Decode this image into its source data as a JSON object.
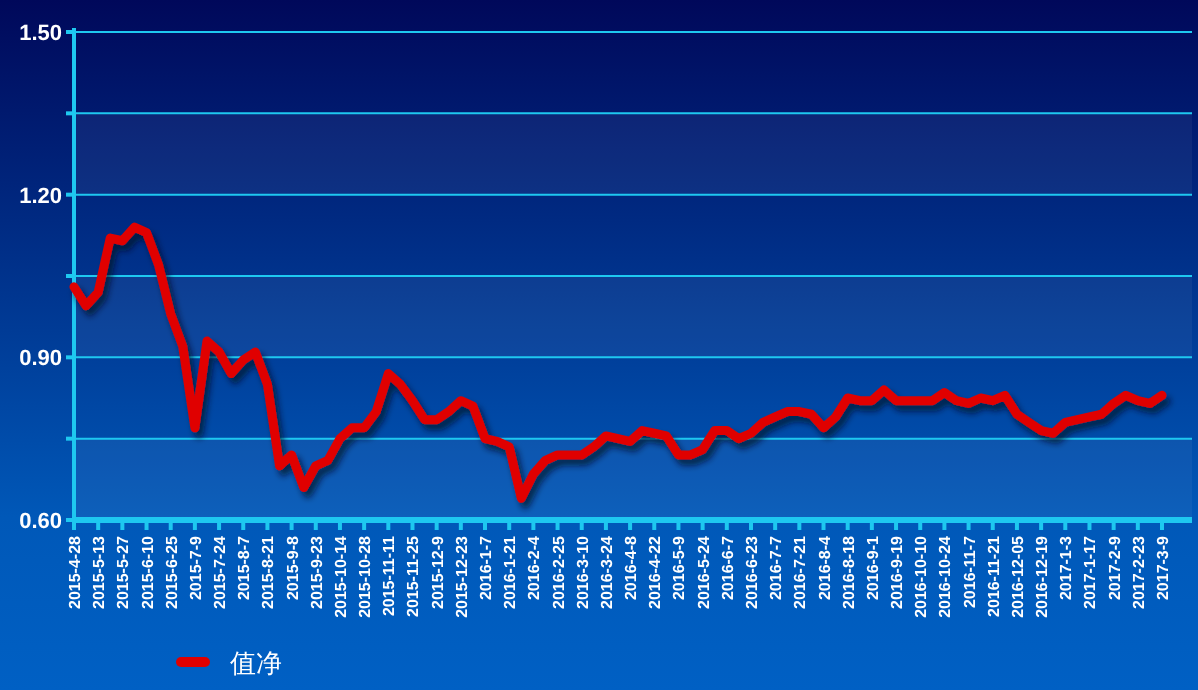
{
  "chart_data": {
    "type": "line",
    "categories": [
      "2015-4-28",
      null,
      "2015-5-13",
      null,
      "2015-5-27",
      null,
      "2015-6-10",
      null,
      "2015-6-25",
      null,
      "2015-7-9",
      null,
      "2015-7-24",
      null,
      "2015-8-7",
      null,
      "2015-8-21",
      null,
      "2015-9-8",
      null,
      "2015-9-23",
      null,
      "2015-10-14",
      null,
      "2015-10-28",
      null,
      "2015-11-11",
      null,
      "2015-11-25",
      null,
      "2015-12-9",
      null,
      "2015-12-23",
      null,
      "2016-1-7",
      null,
      "2016-1-21",
      null,
      "2016-2-4",
      null,
      "2016-2-25",
      null,
      "2016-3-10",
      null,
      "2016-3-24",
      null,
      "2016-4-8",
      null,
      "2016-4-22",
      null,
      "2016-5-9",
      null,
      "2016-5-24",
      null,
      "2016-6-7",
      null,
      "2016-6-23",
      null,
      "2016-7-7",
      null,
      "2016-7-21",
      null,
      "2016-8-4",
      null,
      "2016-8-18",
      null,
      "2016-9-1",
      null,
      "2016-9-19",
      null,
      "2016-10-10",
      null,
      "2016-10-24",
      null,
      "2016-11-7",
      null,
      "2016-11-21",
      null,
      "2016-12-05",
      null,
      "2016-12-19",
      null,
      "2017-1-3",
      null,
      "2017-1-17",
      null,
      "2017-2-9",
      null,
      "2017-2-23",
      null,
      "2017-3-9"
    ],
    "series": [
      {
        "name": "值净",
        "color": "#e00000",
        "values": [
          1.03,
          0.995,
          1.02,
          1.12,
          1.115,
          1.14,
          1.13,
          1.07,
          0.98,
          0.92,
          0.77,
          0.93,
          0.91,
          0.87,
          0.895,
          0.91,
          0.85,
          0.7,
          0.72,
          0.66,
          0.7,
          0.71,
          0.75,
          0.77,
          0.77,
          0.8,
          0.87,
          0.85,
          0.82,
          0.785,
          0.785,
          0.8,
          0.82,
          0.81,
          0.75,
          0.745,
          0.735,
          0.64,
          0.685,
          0.71,
          0.72,
          0.72,
          0.72,
          0.735,
          0.755,
          0.75,
          0.745,
          0.765,
          0.76,
          0.755,
          0.72,
          0.72,
          0.73,
          0.765,
          0.765,
          0.75,
          0.76,
          0.78,
          0.79,
          0.8,
          0.8,
          0.795,
          0.77,
          0.79,
          0.825,
          0.82,
          0.82,
          0.84,
          0.82,
          0.82,
          0.82,
          0.82,
          0.835,
          0.82,
          0.815,
          0.825,
          0.82,
          0.83,
          0.795,
          0.78,
          0.765,
          0.76,
          0.78,
          0.785,
          0.79,
          0.795,
          0.815,
          0.83,
          0.82,
          0.815,
          0.83
        ]
      }
    ],
    "ylim": [
      0.6,
      1.5
    ],
    "yticks": [
      {
        "value": 0.6,
        "label": "0.60"
      },
      {
        "value": 0.75,
        "label": null
      },
      {
        "value": 0.9,
        "label": "0.90"
      },
      {
        "value": 1.05,
        "label": null
      },
      {
        "value": 1.2,
        "label": "1.20"
      },
      {
        "value": 1.35,
        "label": null
      },
      {
        "value": 1.5,
        "label": "1.50"
      }
    ],
    "grid": "y",
    "legend": "bottom left"
  }
}
